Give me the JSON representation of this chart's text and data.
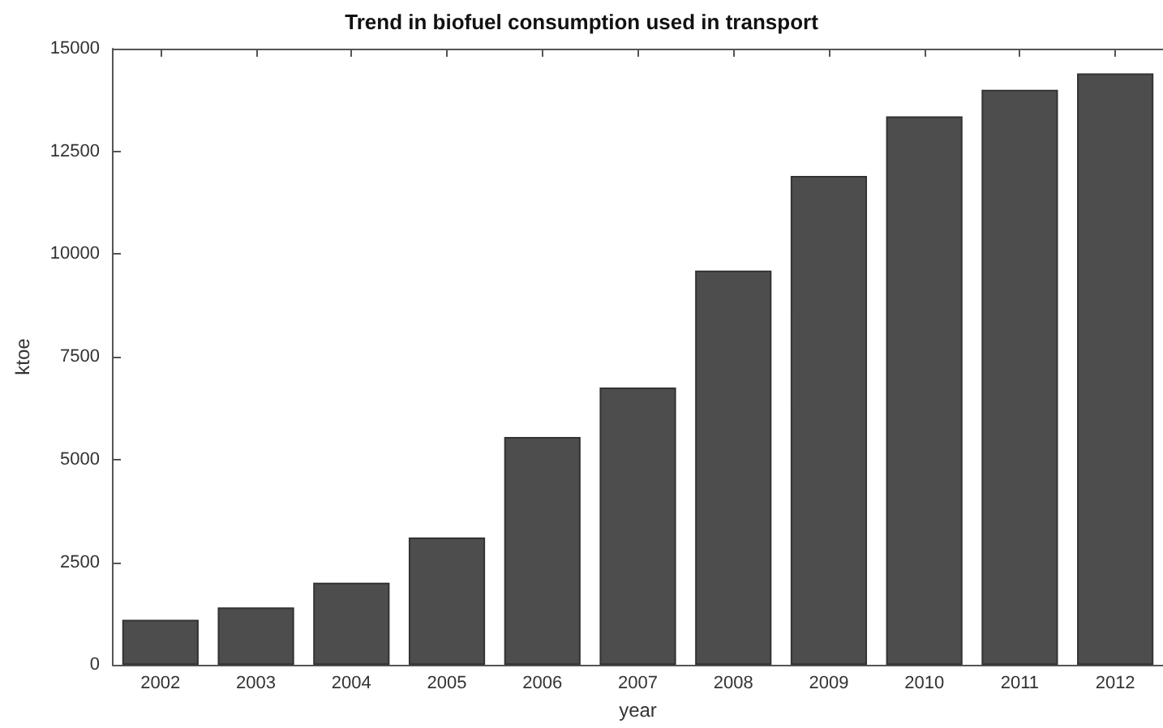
{
  "chart_data": {
    "type": "bar",
    "title": "Trend in biofuel consumption used in transport",
    "xlabel": "year",
    "ylabel": "ktoe",
    "categories": [
      "2002",
      "2003",
      "2004",
      "2005",
      "2006",
      "2007",
      "2008",
      "2009",
      "2010",
      "2011",
      "2012"
    ],
    "values": [
      1100,
      1400,
      2000,
      3100,
      5550,
      6750,
      9600,
      11900,
      13350,
      14000,
      14400
    ],
    "color": "#4d4d4d",
    "ylim": [
      0,
      15000
    ],
    "yticks": [
      0,
      2500,
      5000,
      7500,
      10000,
      12500,
      15000
    ],
    "grid": false
  }
}
